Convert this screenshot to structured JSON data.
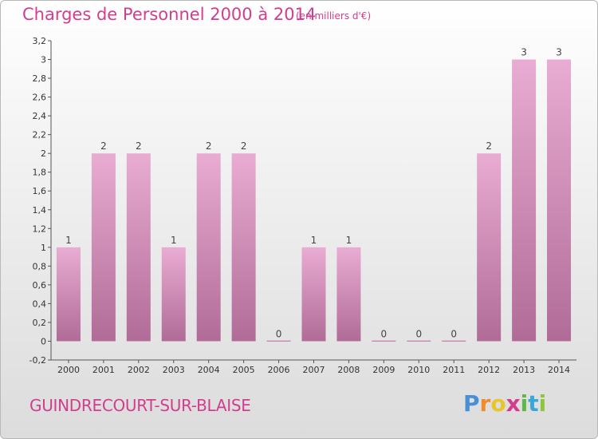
{
  "title": "Charges de Personnel 2000 à 2014",
  "subtitle": "(en milliers d'€)",
  "commune": "GUINDRECOURT-SUR-BLAISE",
  "logo": {
    "letters": [
      "P",
      "r",
      "o",
      "x",
      "i",
      "t",
      "i"
    ],
    "colors": [
      "#4a8fd6",
      "#f08a2a",
      "#e7c52b",
      "#d63a8c",
      "#5cb848",
      "#3aa7d6",
      "#8fc43e"
    ]
  },
  "colors": {
    "bar_light": "#e8a9d0",
    "bar_dark": "#b46e99",
    "accent": "#d23d8d"
  },
  "chart_data": {
    "type": "bar",
    "categories": [
      "2000",
      "2001",
      "2002",
      "2003",
      "2004",
      "2005",
      "2006",
      "2007",
      "2008",
      "2009",
      "2010",
      "2011",
      "2012",
      "2013",
      "2014"
    ],
    "values": [
      1,
      2,
      2,
      1,
      2,
      2,
      0,
      1,
      1,
      0,
      0,
      0,
      2,
      3,
      3
    ],
    "data_labels": [
      "1",
      "2",
      "2",
      "1",
      "2",
      "2",
      "0",
      "1",
      "1",
      "0",
      "0",
      "0",
      "2",
      "3",
      "3"
    ],
    "yticks": [
      "-0,2",
      "0",
      "0,2",
      "0,4",
      "0,6",
      "0,8",
      "1",
      "1,2",
      "1,4",
      "1,6",
      "1,8",
      "2",
      "2,2",
      "2,4",
      "2,6",
      "2,8",
      "3",
      "3,2"
    ],
    "ylim": [
      -0.2,
      3.2
    ],
    "grid": false
  }
}
